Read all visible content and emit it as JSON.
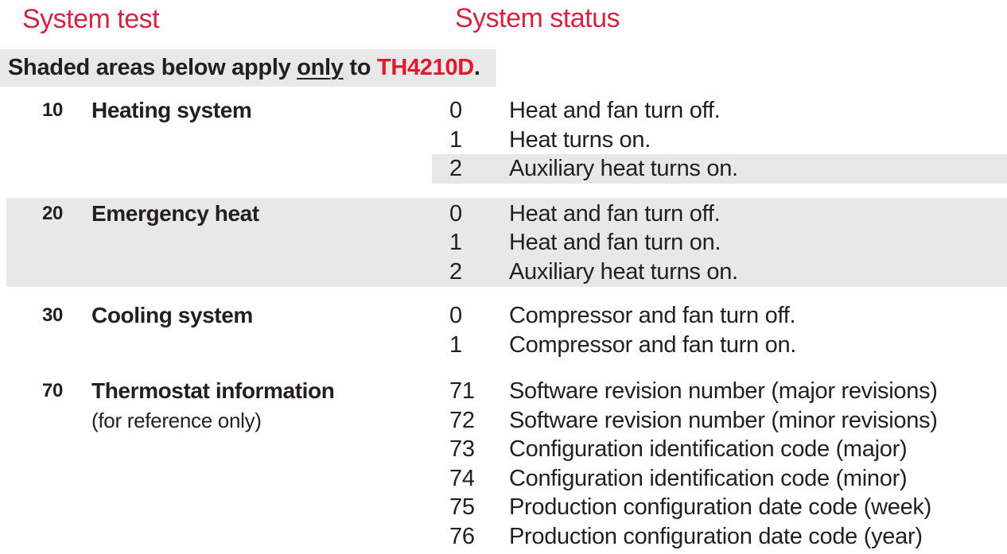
{
  "page": {
    "colors": {
      "accent_red": "#d32440",
      "model_red": "#e1182f",
      "shade_gray": "#e8e8e8",
      "text": "#231f20"
    },
    "columns": {
      "test_header": "System test",
      "status_header": "System status"
    },
    "note": {
      "prefix": "Shaded areas below apply ",
      "underlined": "only",
      "middle": " to ",
      "model": "TH4210D",
      "suffix": "."
    },
    "groups": [
      {
        "code": "10",
        "label": "Heating system",
        "sublabel": "",
        "shaded": false,
        "statuses": [
          {
            "code": "0",
            "text": "Heat and fan turn off.",
            "shaded": false
          },
          {
            "code": "1",
            "text": "Heat turns on.",
            "shaded": false
          },
          {
            "code": "2",
            "text": "Auxiliary heat turns on.",
            "shaded": true
          }
        ]
      },
      {
        "code": "20",
        "label": "Emergency heat",
        "sublabel": "",
        "shaded": true,
        "statuses": [
          {
            "code": "0",
            "text": "Heat and fan turn off.",
            "shaded": false
          },
          {
            "code": "1",
            "text": "Heat and fan turn on.",
            "shaded": false
          },
          {
            "code": "2",
            "text": "Auxiliary heat turns on.",
            "shaded": false
          }
        ]
      },
      {
        "code": "30",
        "label": "Cooling system",
        "sublabel": "",
        "shaded": false,
        "statuses": [
          {
            "code": "0",
            "text": "Compressor and fan turn off.",
            "shaded": false
          },
          {
            "code": "1",
            "text": "Compressor and fan turn on.",
            "shaded": false
          }
        ]
      },
      {
        "code": "70",
        "label": "Thermostat information",
        "sublabel": "(for reference only)",
        "shaded": false,
        "statuses": [
          {
            "code": "71",
            "text": "Software revision number (major revisions)",
            "shaded": false
          },
          {
            "code": "72",
            "text": "Software revision number (minor revisions)",
            "shaded": false
          },
          {
            "code": "73",
            "text": "Configuration identification code (major)",
            "shaded": false
          },
          {
            "code": "74",
            "text": "Configuration identification code (minor)",
            "shaded": false
          },
          {
            "code": "75",
            "text": "Production configuration date code (week)",
            "shaded": false
          },
          {
            "code": "76",
            "text": "Production configuration date code (year)",
            "shaded": false
          }
        ]
      }
    ]
  }
}
